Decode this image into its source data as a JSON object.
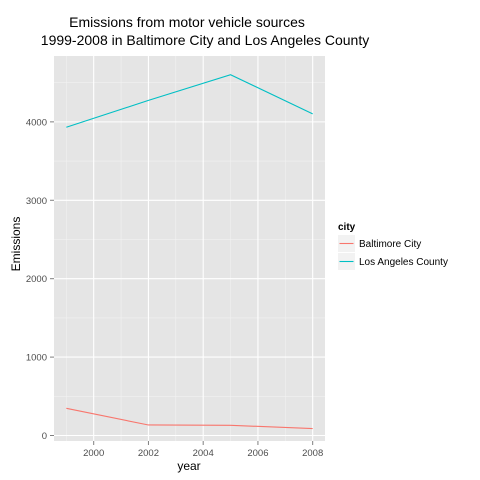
{
  "chart_data": {
    "type": "line",
    "title_lines": [
      "Emissions from motor vehicle sources",
      "1999-2008 in Baltimore City and Los Angeles County"
    ],
    "xlabel": "year",
    "ylabel": "Emissions",
    "x": [
      1999,
      2002,
      2005,
      2008
    ],
    "xticks": [
      2000,
      2002,
      2004,
      2006,
      2008
    ],
    "xtick_labels": [
      "2000",
      "2002",
      "2004",
      "2006",
      "2008"
    ],
    "xlim": [
      1998.55,
      2008.45
    ],
    "yticks": [
      0,
      1000,
      2000,
      3000,
      4000
    ],
    "ytick_labels": [
      "0",
      "1000",
      "2000",
      "3000",
      "4000"
    ],
    "ylim": [
      -70,
      4840
    ],
    "grid": true,
    "background": "#e5e5e5",
    "legend": {
      "title": "city",
      "position": "right"
    },
    "series": [
      {
        "name": "Baltimore City",
        "color": "#f8766d",
        "values": [
          346.82,
          134.31,
          130.43,
          88.28
        ]
      },
      {
        "name": "Los Angeles County",
        "color": "#00bfc4",
        "values": [
          3931.12,
          4274.03,
          4601.41,
          4101.32
        ]
      }
    ]
  }
}
